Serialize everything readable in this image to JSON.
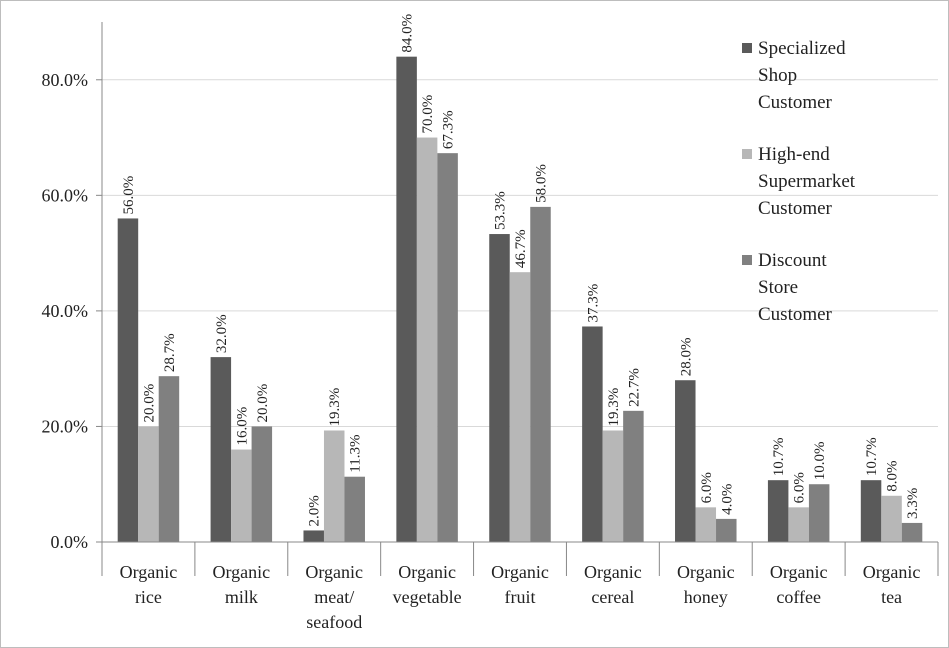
{
  "chart_data": {
    "type": "bar",
    "title": "",
    "xlabel": "",
    "ylabel": "",
    "ylim": [
      0,
      0.9
    ],
    "y_ticks": [
      0.0,
      0.2,
      0.4,
      0.6,
      0.8
    ],
    "y_tick_labels": [
      "0.0%",
      "20.0%",
      "40.0%",
      "60.0%",
      "80.0%"
    ],
    "grid": true,
    "legend_position": "top-right",
    "categories": [
      [
        "Organic",
        "rice"
      ],
      [
        "Organic",
        "milk"
      ],
      [
        "Organic",
        "meat/",
        "seafood"
      ],
      [
        "Organic",
        "vegetable"
      ],
      [
        "Organic",
        "fruit"
      ],
      [
        "Organic",
        "cereal"
      ],
      [
        "Organic",
        "honey"
      ],
      [
        "Organic",
        "coffee"
      ],
      [
        "Organic",
        "tea"
      ]
    ],
    "series": [
      {
        "name": [
          "Specialized",
          "Shop",
          "Customer"
        ],
        "color": "#5a5a5a",
        "values": [
          0.56,
          0.32,
          0.02,
          0.84,
          0.533,
          0.373,
          0.28,
          0.107,
          0.107
        ],
        "labels": [
          "56.0%",
          "32.0%",
          "2.0%",
          "84.0%",
          "53.3%",
          "37.3%",
          "28.0%",
          "10.7%",
          "10.7%"
        ]
      },
      {
        "name": [
          "High-end",
          "Supermarket",
          "Customer"
        ],
        "color": "#b7b7b7",
        "values": [
          0.2,
          0.16,
          0.193,
          0.7,
          0.467,
          0.193,
          0.06,
          0.06,
          0.08
        ],
        "labels": [
          "20.0%",
          "16.0%",
          "19.3%",
          "70.0%",
          "46.7%",
          "19.3%",
          "6.0%",
          "6.0%",
          "8.0%"
        ]
      },
      {
        "name": [
          "Discount",
          "Store",
          "Customer"
        ],
        "color": "#808080",
        "values": [
          0.287,
          0.2,
          0.113,
          0.673,
          0.58,
          0.227,
          0.04,
          0.1,
          0.033
        ],
        "labels": [
          "28.7%",
          "20.0%",
          "11.3%",
          "67.3%",
          "58.0%",
          "22.7%",
          "4.0%",
          "10.0%",
          "3.3%"
        ]
      }
    ]
  }
}
